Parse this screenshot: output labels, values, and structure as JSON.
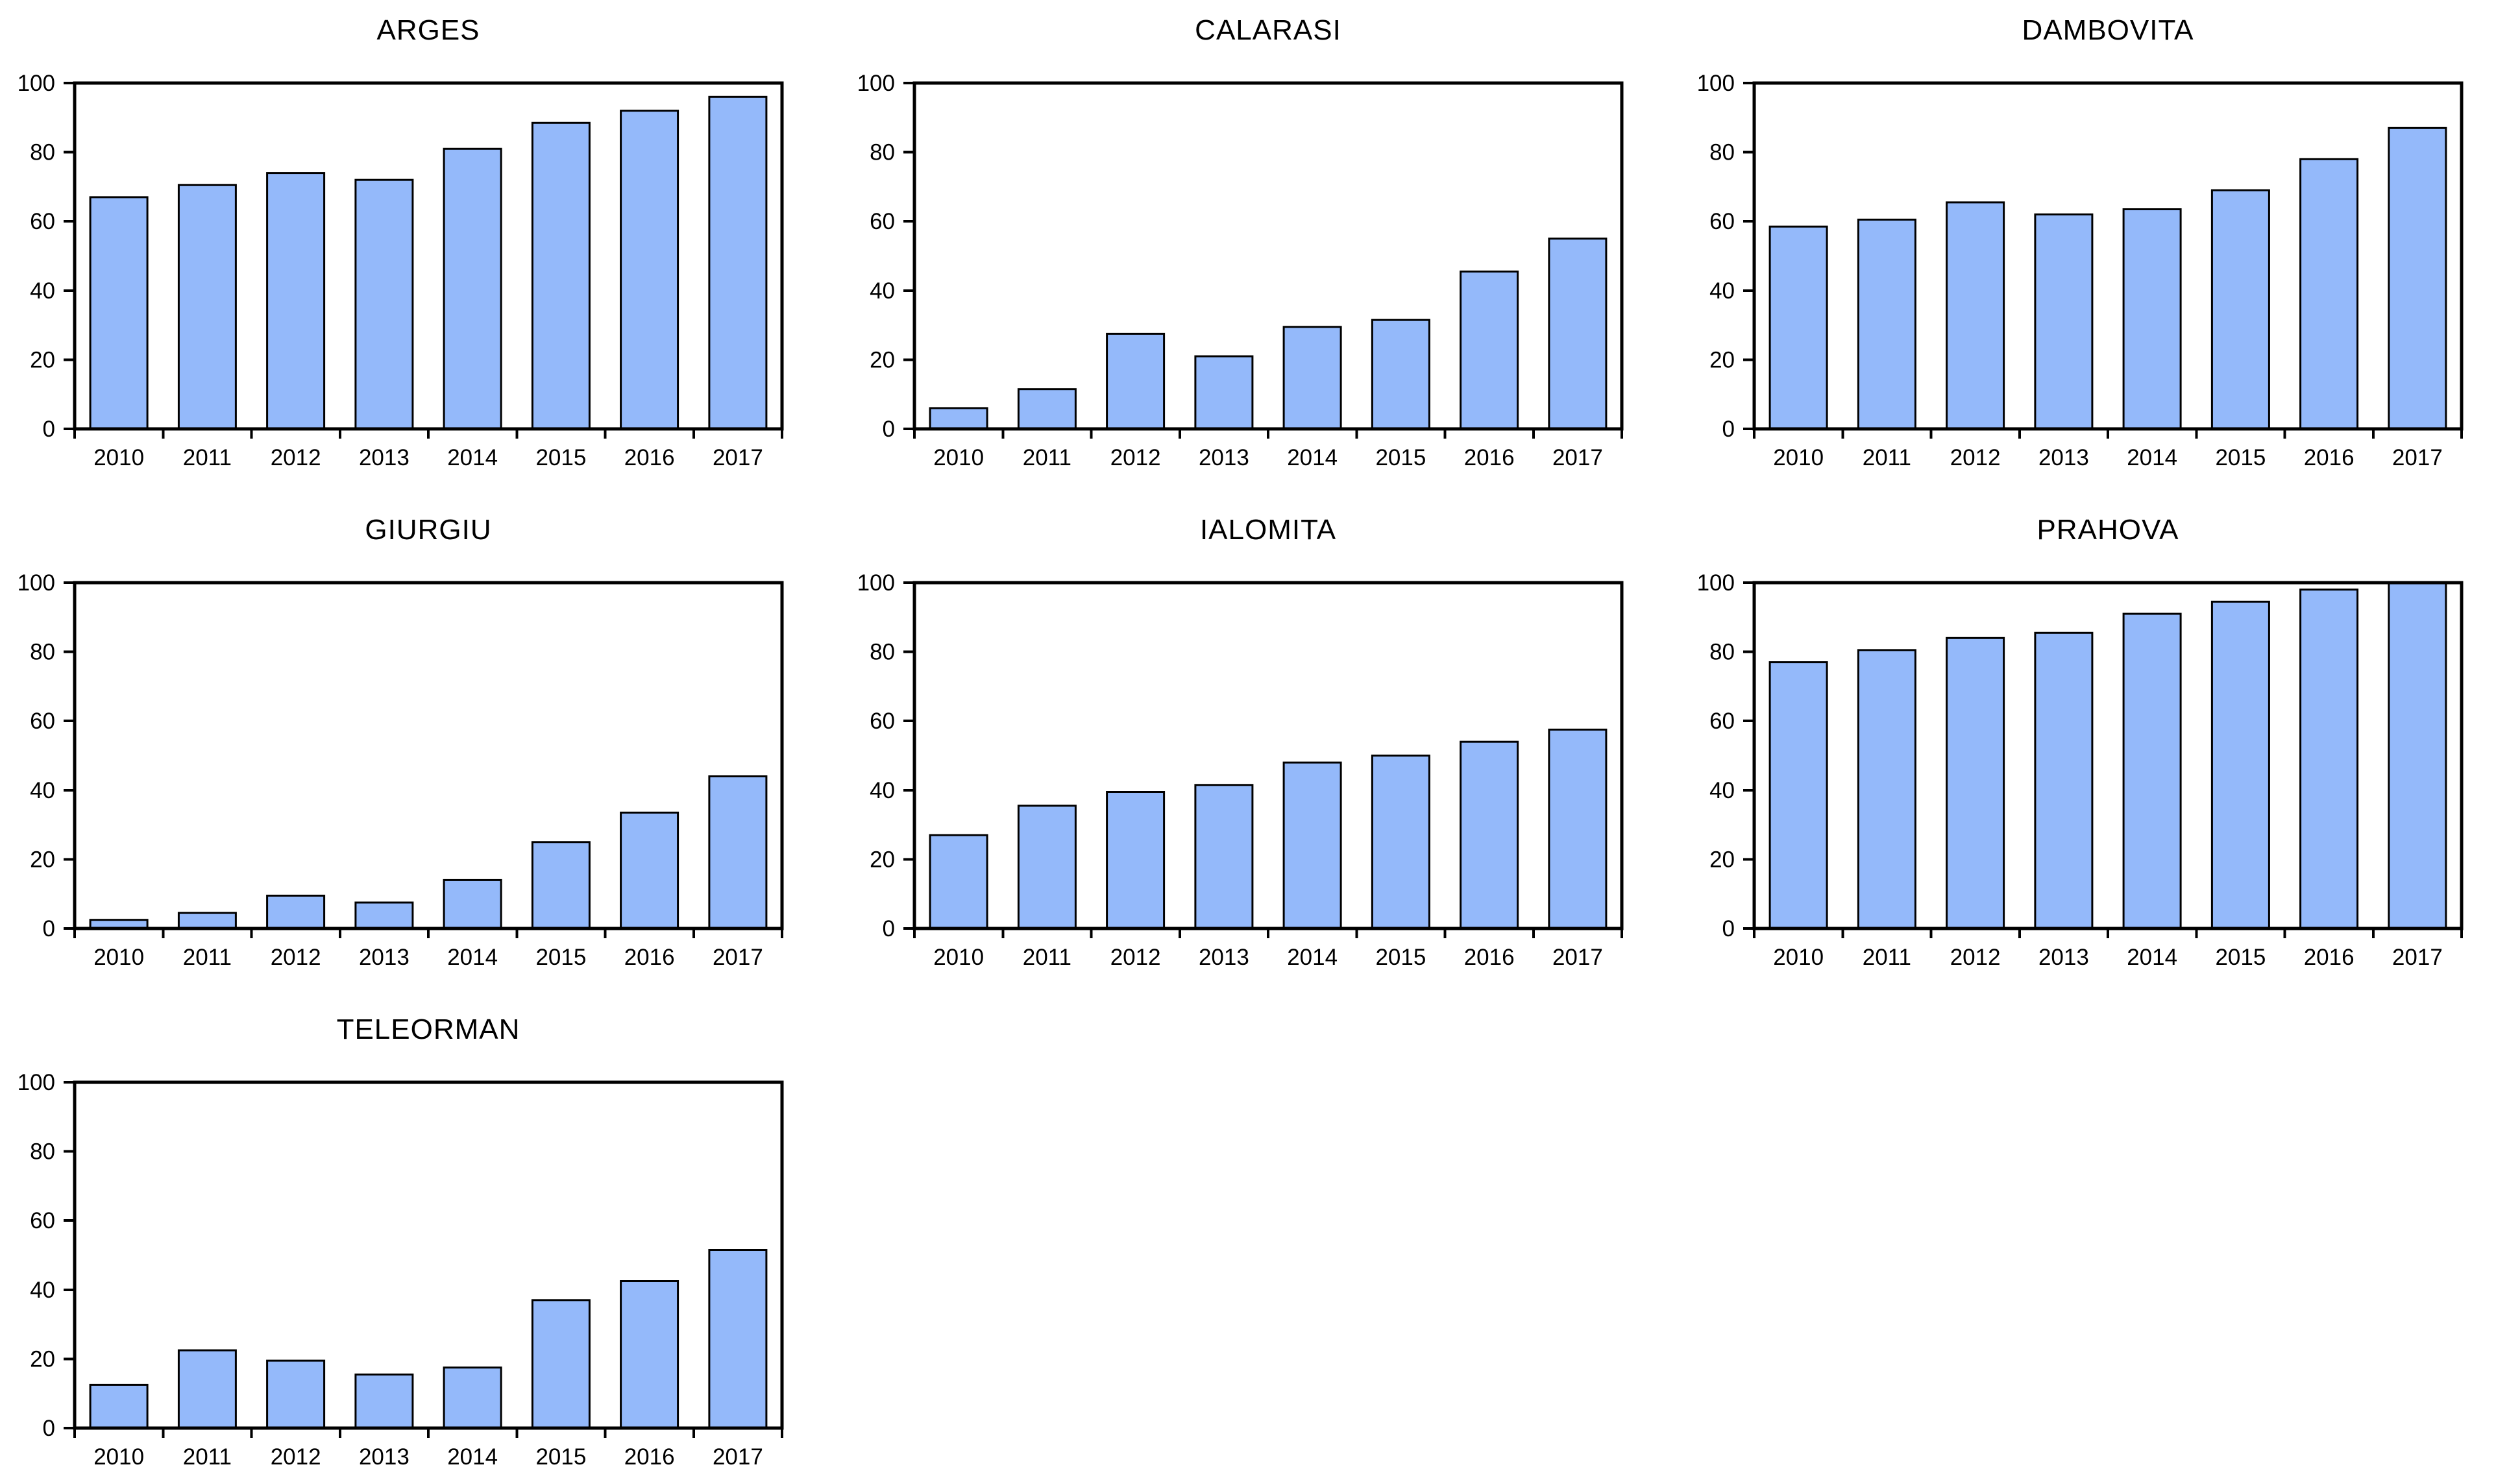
{
  "page": {
    "background_color": "#ffffff",
    "grid": "3 columns x 3 rows of small-multiple bar charts, 7 charts total"
  },
  "chart_data": {
    "type": "bar",
    "categories": [
      "2010",
      "2011",
      "2012",
      "2013",
      "2014",
      "2015",
      "2016",
      "2017"
    ],
    "xlabel": "",
    "ylabel": "",
    "ylim": [
      0,
      100
    ],
    "yticks": [
      0,
      20,
      40,
      60,
      80,
      100
    ],
    "grid_lines": "off",
    "legend": "none",
    "bar_color": "#94B9FA",
    "bar_border_color": "#000000",
    "axis_color": "#000000",
    "text_color": "#000000",
    "charts": [
      {
        "title": "ARGES",
        "values": [
          67,
          70.5,
          74,
          72,
          81,
          88.5,
          92,
          96
        ]
      },
      {
        "title": "CALARASI",
        "values": [
          6,
          11.5,
          27.5,
          21,
          29.5,
          31.5,
          45.5,
          55
        ]
      },
      {
        "title": "DAMBOVITA",
        "values": [
          58.5,
          60.5,
          65.5,
          62,
          63.5,
          69,
          78,
          87
        ]
      },
      {
        "title": "GIURGIU",
        "values": [
          2.5,
          4.5,
          9.5,
          7.5,
          14,
          25,
          33.5,
          44
        ]
      },
      {
        "title": "IALOMITA",
        "values": [
          27,
          35.5,
          39.5,
          41.5,
          48,
          50,
          54,
          57.5
        ]
      },
      {
        "title": "PRAHOVA",
        "values": [
          77,
          80.5,
          84,
          85.5,
          91,
          94.5,
          98,
          100
        ]
      },
      {
        "title": "TELEORMAN",
        "values": [
          12.5,
          22.5,
          19.5,
          15.5,
          17.5,
          37,
          42.5,
          51.5
        ]
      }
    ]
  }
}
